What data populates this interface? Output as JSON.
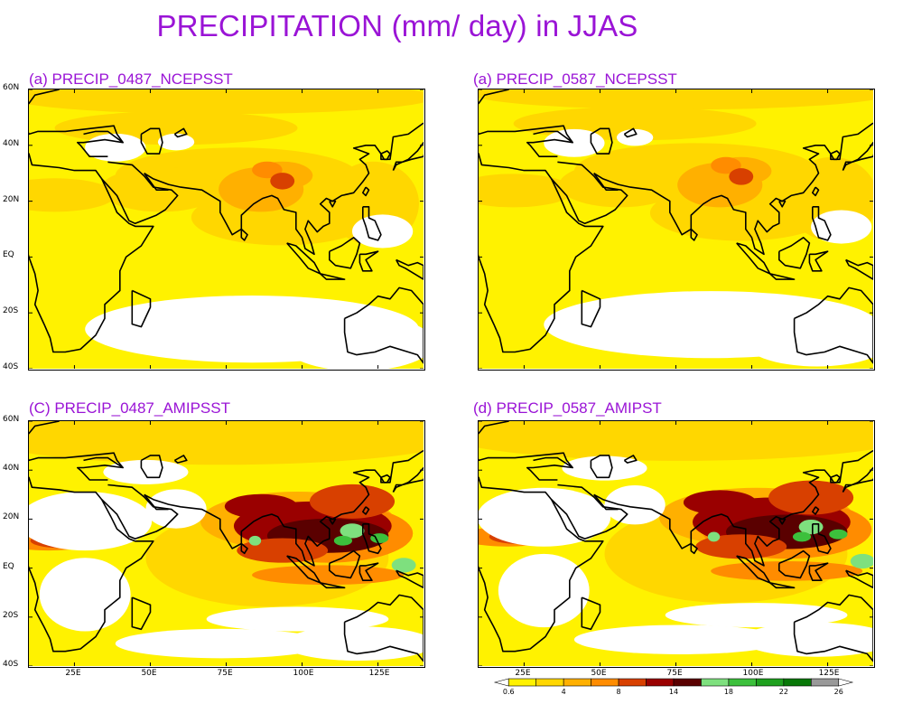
{
  "title": "PRECIPITATION (mm/ day) in JJAS",
  "panels": [
    {
      "title": "(a)  PRECIP_0487_NCEPSST",
      "regime": "ncep",
      "variant": 0
    },
    {
      "title": "(a)  PRECIP_0587_NCEPSST",
      "regime": "ncep",
      "variant": 1
    },
    {
      "title": "(C)  PRECIP_0487_AMIPSST",
      "regime": "amip",
      "variant": 0
    },
    {
      "title": "(d)  PRECIP_0587_AMIPST",
      "regime": "amip",
      "variant": 1
    }
  ],
  "axes": {
    "lat_ticks": [
      "60N",
      "40N",
      "20N",
      "EQ",
      "20S",
      "40S"
    ],
    "lat_values": [
      60,
      40,
      20,
      0,
      -20,
      -40
    ],
    "lon_ticks": [
      "25E",
      "50E",
      "75E",
      "100E",
      "125E"
    ],
    "lon_values": [
      25,
      50,
      75,
      100,
      125
    ],
    "lon_range": [
      10,
      140
    ],
    "lat_range": [
      -40,
      60
    ]
  },
  "legend": {
    "labels": [
      "0.6",
      "4",
      "8",
      "14",
      "18",
      "22",
      "26"
    ],
    "levels": [
      0.6,
      2,
      4,
      6,
      8,
      10,
      14,
      16,
      18,
      20,
      22,
      24,
      26
    ],
    "colors": [
      "#ffffff",
      "#fff200",
      "#ffd700",
      "#ffb000",
      "#ff8c00",
      "#d84000",
      "#9a0000",
      "#5a0000",
      "#7ee07e",
      "#3cc03c",
      "#1ea01e",
      "#087808",
      "#999999",
      "#ffffff"
    ]
  },
  "colors": {
    "title": "#9a14d6",
    "coast": "#000000"
  }
}
